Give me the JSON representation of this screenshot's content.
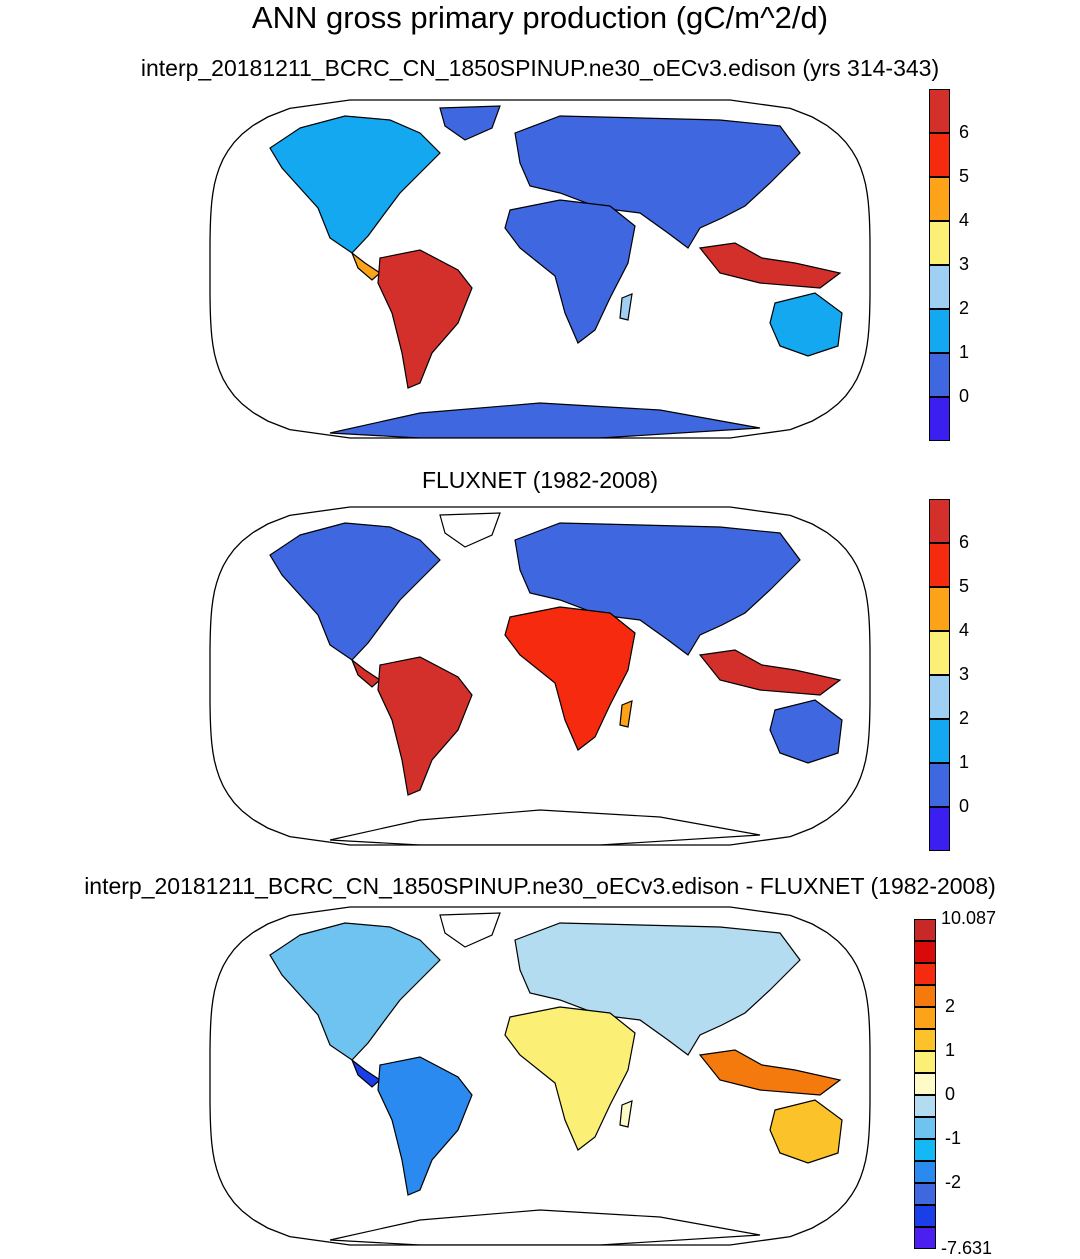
{
  "figure": {
    "title": "ANN gross primary production (gC/m^2/d)"
  },
  "panels": [
    {
      "id": "test",
      "title": "interp_20181211_BCRC_CN_1850SPINUP.ne30_oECv3.edison (yrs 314-343)",
      "colorbar": {
        "colors": [
          "#3a1ff0",
          "#3f67e0",
          "#14a8f0",
          "#9fcff2",
          "#fcef76",
          "#fca31a",
          "#f52a0e",
          "#d3302c"
        ],
        "labels": [
          "0",
          "1",
          "2",
          "3",
          "4",
          "5",
          "6"
        ],
        "end_labels": [
          "",
          ""
        ]
      }
    },
    {
      "id": "reference",
      "title": "FLUXNET (1982-2008)",
      "colorbar": {
        "colors": [
          "#3a1ff0",
          "#3f67e0",
          "#14a8f0",
          "#9fcff2",
          "#fcef76",
          "#fca31a",
          "#f52a0e",
          "#d3302c"
        ],
        "labels": [
          "0",
          "1",
          "2",
          "3",
          "4",
          "5",
          "6"
        ],
        "end_labels": [
          "",
          ""
        ]
      }
    },
    {
      "id": "difference",
      "title": "interp_20181211_BCRC_CN_1850SPINUP.ne30_oECv3.edison - FLUXNET (1982-2008)",
      "colorbar": {
        "colors": [
          "#4a1ff0",
          "#1a3fe8",
          "#3f67e0",
          "#2a8af0",
          "#14b8f5",
          "#6ec3f0",
          "#b3dcf0",
          "#fffbc8",
          "#fcef76",
          "#fcc22a",
          "#fca31a",
          "#f57a0e",
          "#f52a0e",
          "#d80a0a",
          "#c82828"
        ],
        "labels": [
          "-2",
          "",
          "-1",
          "",
          "0",
          "",
          "1",
          "",
          "2",
          ""
        ],
        "end_labels": [
          "-7.631",
          "10.087"
        ]
      }
    }
  ]
}
